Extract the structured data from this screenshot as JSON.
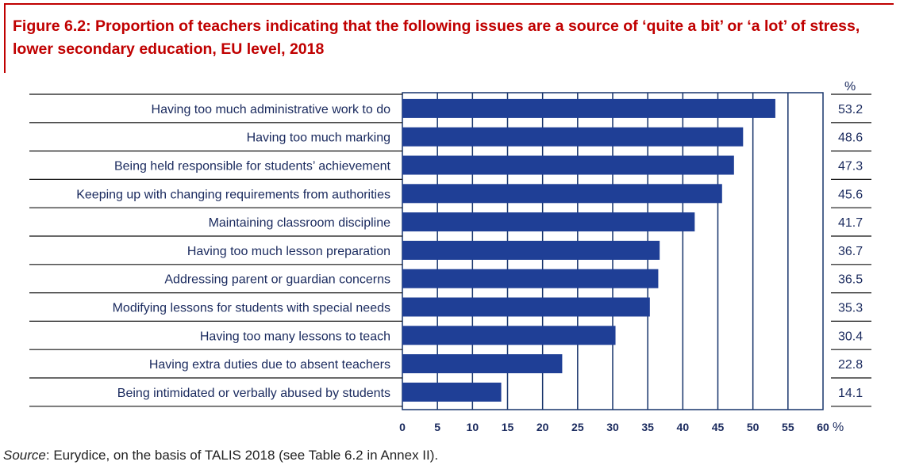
{
  "figure": {
    "title": "Figure 6.2: Proportion of teachers indicating that the following issues are a source of ‘quite a bit’ or ‘a lot’ of stress, lower secondary education, EU level, 2018",
    "source_label": "Source",
    "source_text": ": Eurydice, on the basis of TALIS 2018 (see Table 6.2 in Annex II)."
  },
  "colors": {
    "bar": "#1f3f96",
    "title": "#c00000",
    "axis": "#17346b"
  },
  "chart_data": {
    "type": "bar",
    "orientation": "horizontal",
    "title": "Figure 6.2: Proportion of teachers indicating that the following issues are a source of ‘quite a bit’ or ‘a lot’ of stress, lower secondary education, EU level, 2018",
    "categories": [
      "Having too much administrative work to do",
      "Having too much marking",
      "Being held responsible for students’ achievement",
      "Keeping up with changing requirements from authorities",
      "Maintaining classroom discipline",
      "Having too much lesson preparation",
      "Addressing parent or guardian concerns",
      "Modifying lessons for students with special needs",
      "Having too many lessons to teach",
      "Having extra duties due to absent teachers",
      "Being intimidated or verbally abused by students"
    ],
    "values": [
      53.2,
      48.6,
      47.3,
      45.6,
      41.7,
      36.7,
      36.5,
      35.3,
      30.4,
      22.8,
      14.1
    ],
    "value_labels": [
      "53.2",
      "48.6",
      "47.3",
      "45.6",
      "41.7",
      "36.7",
      "36.5",
      "35.3",
      "30.4",
      "22.8",
      "14.1"
    ],
    "xlim": [
      0,
      60
    ],
    "xticks": [
      0,
      5,
      10,
      15,
      20,
      25,
      30,
      35,
      40,
      45,
      50,
      55,
      60
    ],
    "xlabel": "%",
    "value_column_header": "%",
    "grid": true
  }
}
